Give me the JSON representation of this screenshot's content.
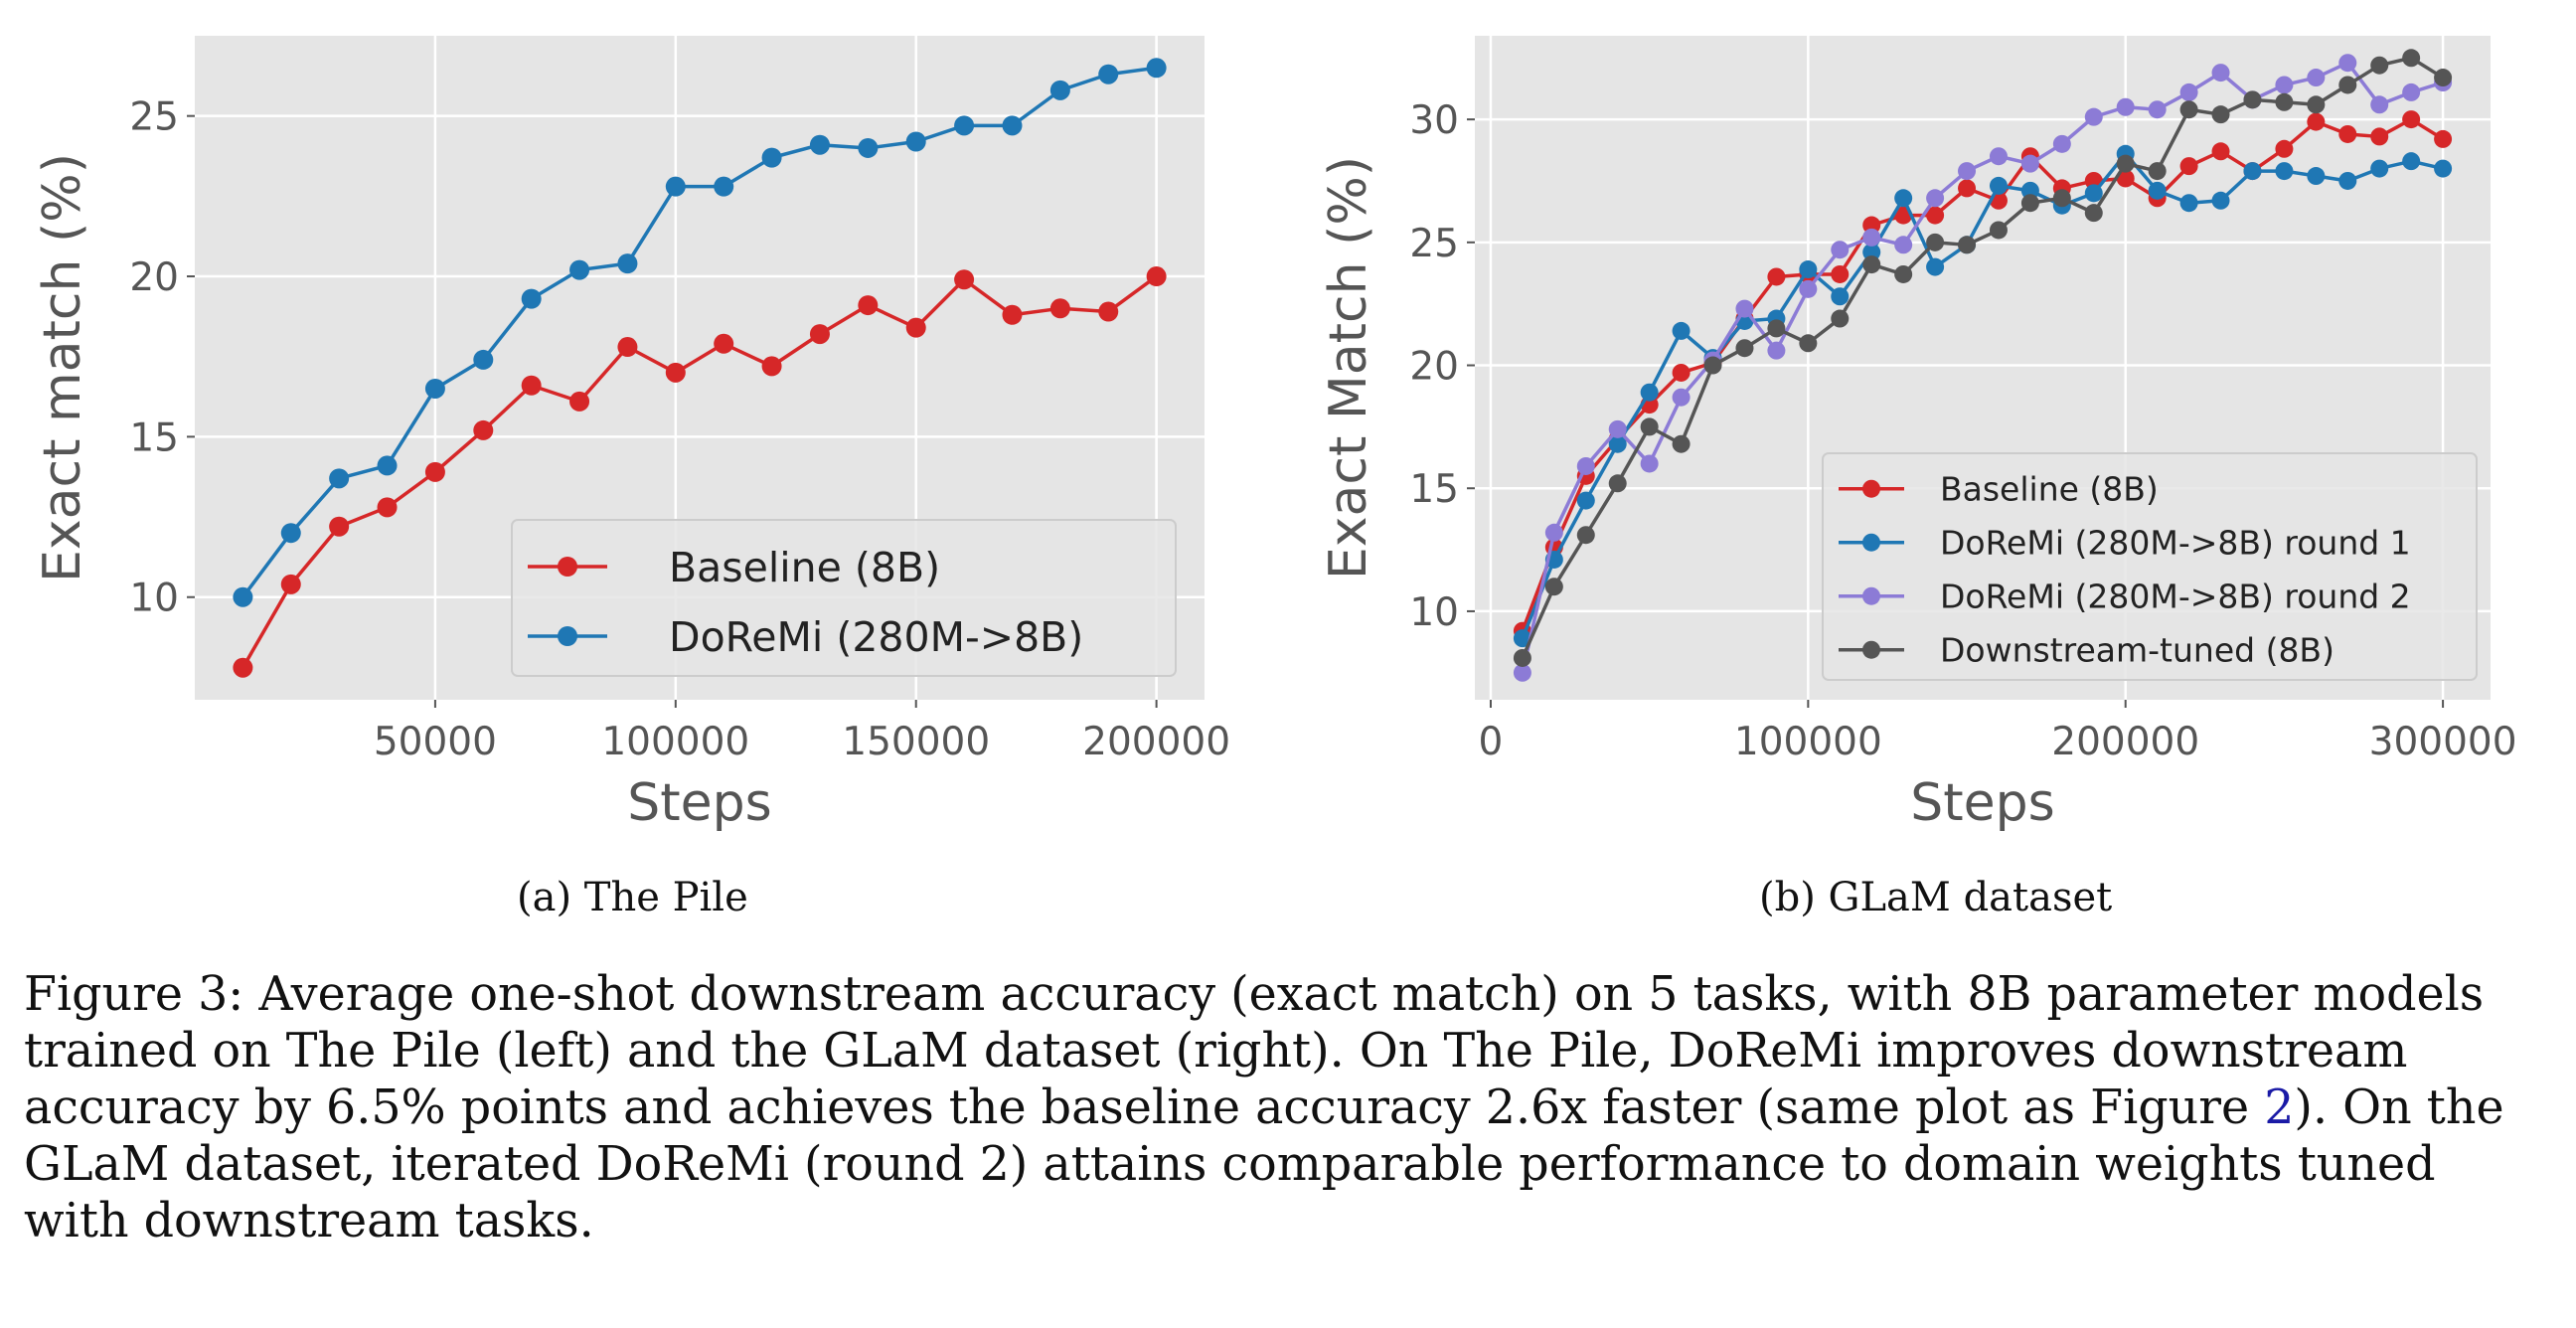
{
  "figure": {
    "panels": [
      {
        "subcaption": "(a) The Pile"
      },
      {
        "subcaption": "(b) GLaM dataset"
      }
    ],
    "caption": {
      "part1": "Figure 3: Average one-shot downstream accuracy (exact match) on 5 tasks, with 8B parameter models trained on The Pile (left) and the GLaM dataset (right). On The Pile, DoReMi improves downstream accuracy by 6.5% points and achieves the baseline accuracy 2.6x faster (same plot as Figure ",
      "ref": "2",
      "part2": "). On the GLaM dataset, iterated DoReMi (round 2) attains comparable performance to domain weights tuned with downstream tasks."
    }
  },
  "chart_data": [
    {
      "type": "line",
      "title": "",
      "xlabel": "Steps",
      "ylabel": "Exact match (%)",
      "xlim": [
        0,
        210000
      ],
      "ylim": [
        6.8,
        27.5
      ],
      "xticks": [
        50000,
        100000,
        150000,
        200000
      ],
      "yticks": [
        10,
        15,
        20,
        25
      ],
      "grid": true,
      "legend": "bottom-right",
      "x": [
        10000,
        20000,
        30000,
        40000,
        50000,
        60000,
        70000,
        80000,
        90000,
        100000,
        110000,
        120000,
        130000,
        140000,
        150000,
        160000,
        170000,
        180000,
        190000,
        200000
      ],
      "series": [
        {
          "name": "Baseline (8B)",
          "color": "#d62728",
          "values": [
            7.8,
            10.4,
            12.2,
            12.8,
            13.9,
            15.2,
            16.6,
            16.1,
            17.8,
            17.0,
            17.9,
            17.2,
            18.2,
            19.1,
            18.4,
            19.9,
            18.8,
            19.0,
            18.9,
            20.0
          ]
        },
        {
          "name": "DoReMi (280M->8B)",
          "color": "#1f77b4",
          "values": [
            10.0,
            12.0,
            13.7,
            14.1,
            16.5,
            17.4,
            19.3,
            20.2,
            20.4,
            22.8,
            22.8,
            23.7,
            24.1,
            24.0,
            24.2,
            24.7,
            24.7,
            25.8,
            26.3,
            26.5
          ]
        }
      ]
    },
    {
      "type": "line",
      "title": "",
      "xlabel": "Steps",
      "ylabel": "Exact Match (%)",
      "xlim": [
        -5000,
        315000
      ],
      "ylim": [
        6.4,
        33.4
      ],
      "xticks": [
        0,
        100000,
        200000,
        300000
      ],
      "yticks": [
        10,
        15,
        20,
        25,
        30
      ],
      "grid": true,
      "legend": "lower-right",
      "x": [
        10000,
        20000,
        30000,
        40000,
        50000,
        60000,
        70000,
        80000,
        90000,
        100000,
        110000,
        120000,
        130000,
        140000,
        150000,
        160000,
        170000,
        180000,
        190000,
        200000,
        210000,
        220000,
        230000,
        240000,
        250000,
        260000,
        270000,
        280000,
        290000,
        300000
      ],
      "series": [
        {
          "name": "Baseline (8B)",
          "color": "#d62728",
          "values": [
            9.2,
            12.6,
            15.5,
            17.0,
            18.4,
            19.7,
            20.1,
            21.9,
            23.6,
            23.7,
            23.7,
            25.7,
            26.1,
            26.1,
            27.2,
            26.7,
            28.5,
            27.2,
            27.5,
            27.6,
            26.8,
            28.1,
            28.7,
            27.9,
            28.8,
            29.9,
            29.4,
            29.3,
            30.0,
            29.2
          ]
        },
        {
          "name": "DoReMi (280M->8B) round 1",
          "color": "#1f77b4",
          "values": [
            8.9,
            12.1,
            14.5,
            16.8,
            18.9,
            21.4,
            20.3,
            21.8,
            21.9,
            23.9,
            22.8,
            24.6,
            26.8,
            24.0,
            24.9,
            27.3,
            27.1,
            26.5,
            27.0,
            28.6,
            27.1,
            26.6,
            26.7,
            27.9,
            27.9,
            27.7,
            27.5,
            28.0,
            28.3,
            28.0
          ]
        },
        {
          "name": "DoReMi (280M->8B) round 2",
          "color": "#8c7bd6",
          "values": [
            7.5,
            13.2,
            15.9,
            17.4,
            16.0,
            18.7,
            20.2,
            22.3,
            20.6,
            23.1,
            24.7,
            25.2,
            24.9,
            26.8,
            27.9,
            28.5,
            28.2,
            29.0,
            30.1,
            30.5,
            30.4,
            31.1,
            31.9,
            30.8,
            31.4,
            31.7,
            32.3,
            30.6,
            31.1,
            31.5
          ]
        },
        {
          "name": "Downstream-tuned (8B)",
          "color": "#555555",
          "values": [
            8.1,
            11.0,
            13.1,
            15.2,
            17.5,
            16.8,
            20.0,
            20.7,
            21.5,
            20.9,
            21.9,
            24.1,
            23.7,
            25.0,
            24.9,
            25.5,
            26.6,
            26.8,
            26.2,
            28.2,
            27.9,
            30.4,
            30.2,
            30.8,
            30.7,
            30.6,
            31.4,
            32.2,
            32.5,
            31.7
          ]
        }
      ]
    }
  ]
}
